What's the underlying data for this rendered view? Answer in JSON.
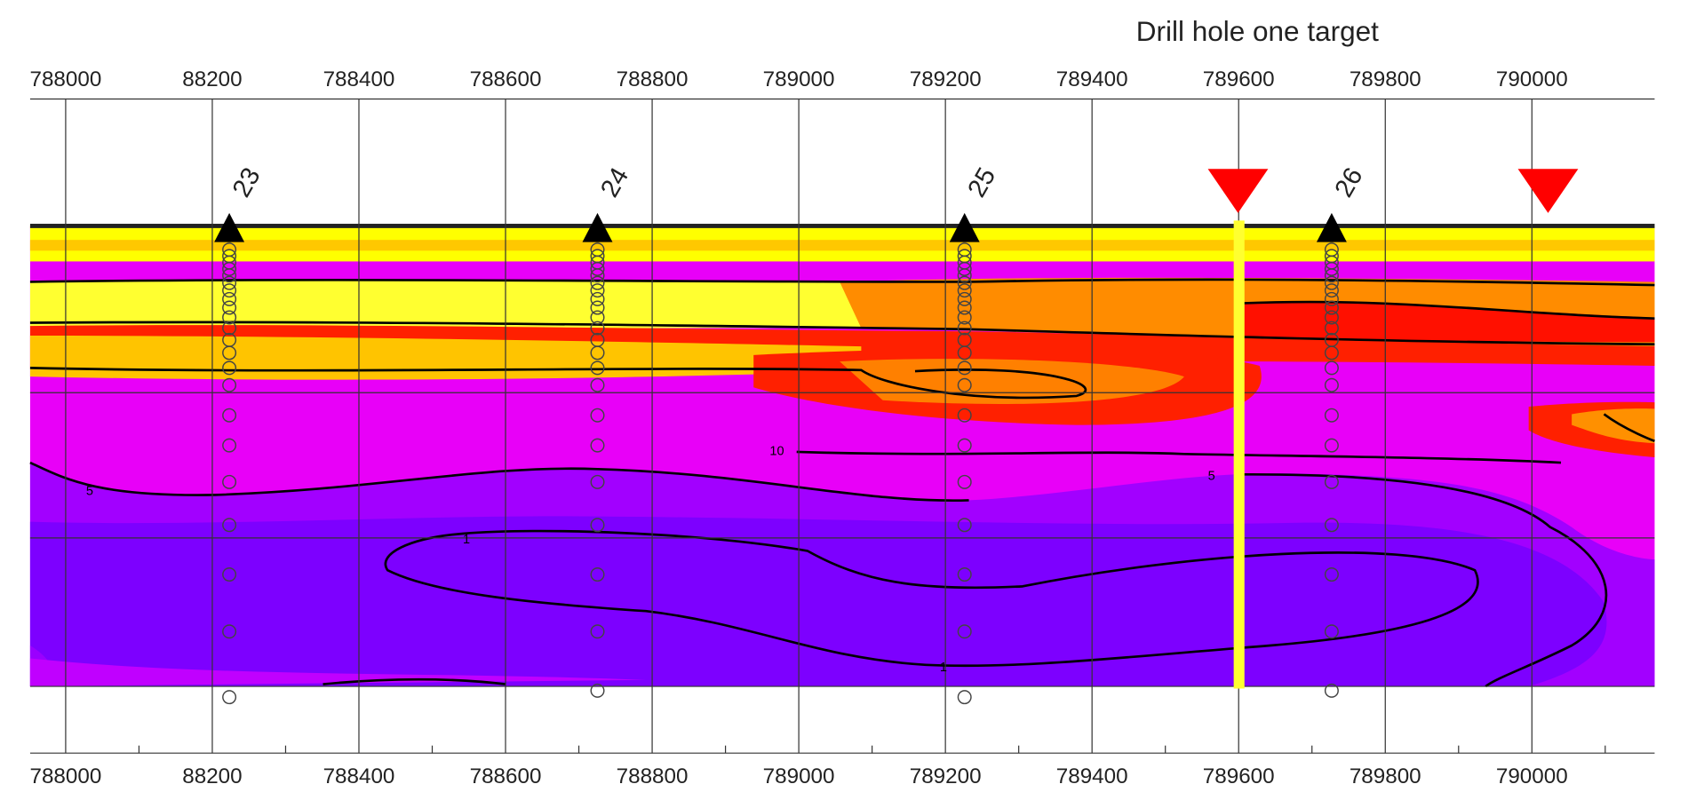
{
  "title": "Drill hole one target",
  "top_axis": [
    "788000",
    "88200",
    "788400",
    "788600",
    "788800",
    "789000",
    "789200",
    "789400",
    "789600",
    "789800",
    "790000"
  ],
  "bottom_axis": [
    "788000",
    "88200",
    "788400",
    "788600",
    "788800",
    "789000",
    "789200",
    "789400",
    "789600",
    "789800",
    "790000"
  ],
  "holes": [
    "23",
    "24",
    "25",
    "26"
  ],
  "contour_labels": [
    "10",
    "5",
    "5",
    "1",
    "1"
  ]
}
